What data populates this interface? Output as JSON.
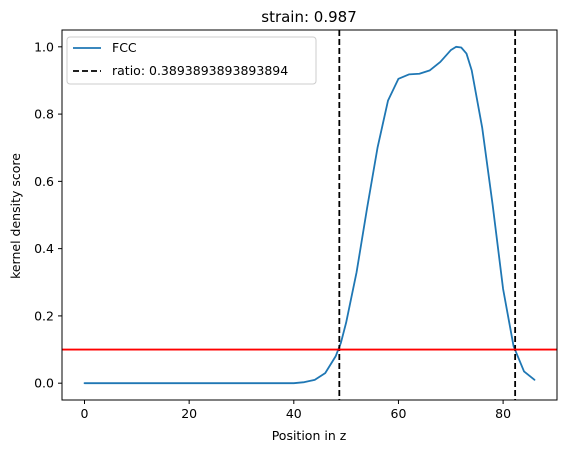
{
  "chart_data": {
    "type": "line",
    "title": "strain: 0.987",
    "xlabel": "Position in z",
    "ylabel": "kernel density score",
    "xlim": [
      -4.3,
      90.3
    ],
    "ylim": [
      -0.05,
      1.05
    ],
    "xticks": [
      0,
      20,
      40,
      60,
      80
    ],
    "xtick_labels": [
      "0",
      "20",
      "40",
      "60",
      "80"
    ],
    "yticks": [
      0.0,
      0.2,
      0.4,
      0.6,
      0.8,
      1.0
    ],
    "ytick_labels": [
      "0.0",
      "0.2",
      "0.4",
      "0.6",
      "0.8",
      "1.0"
    ],
    "grid": false,
    "legend_position": "upper-left",
    "series": [
      {
        "name": "FCC",
        "color": "#1f77b4",
        "style": "solid",
        "x": [
          0,
          10,
          20,
          30,
          40,
          42,
          44,
          46,
          48,
          49,
          50,
          52,
          54,
          56,
          58,
          60,
          62,
          64,
          66,
          68,
          70,
          71,
          72,
          73,
          74,
          76,
          78,
          80,
          82,
          84,
          86
        ],
        "y": [
          0,
          0,
          0,
          0,
          0.0,
          0.003,
          0.01,
          0.03,
          0.08,
          0.12,
          0.18,
          0.33,
          0.52,
          0.7,
          0.84,
          0.905,
          0.918,
          0.92,
          0.93,
          0.955,
          0.99,
          1.0,
          0.998,
          0.98,
          0.93,
          0.76,
          0.53,
          0.28,
          0.11,
          0.035,
          0.01
        ]
      }
    ],
    "vlines": [
      {
        "name": "ratio: 0.3893893893893894",
        "x": 48.7,
        "color": "#000000",
        "style": "dashed"
      },
      {
        "x": 82.3,
        "color": "#000000",
        "style": "dashed"
      }
    ],
    "hlines": [
      {
        "y": 0.1,
        "color": "#ff0000",
        "style": "solid"
      }
    ]
  },
  "legend": {
    "entries": [
      {
        "label": "FCC",
        "color": "#1f77b4",
        "style": "solid"
      },
      {
        "label": "ratio: 0.3893893893893894",
        "color": "#000000",
        "style": "dashed"
      }
    ]
  }
}
